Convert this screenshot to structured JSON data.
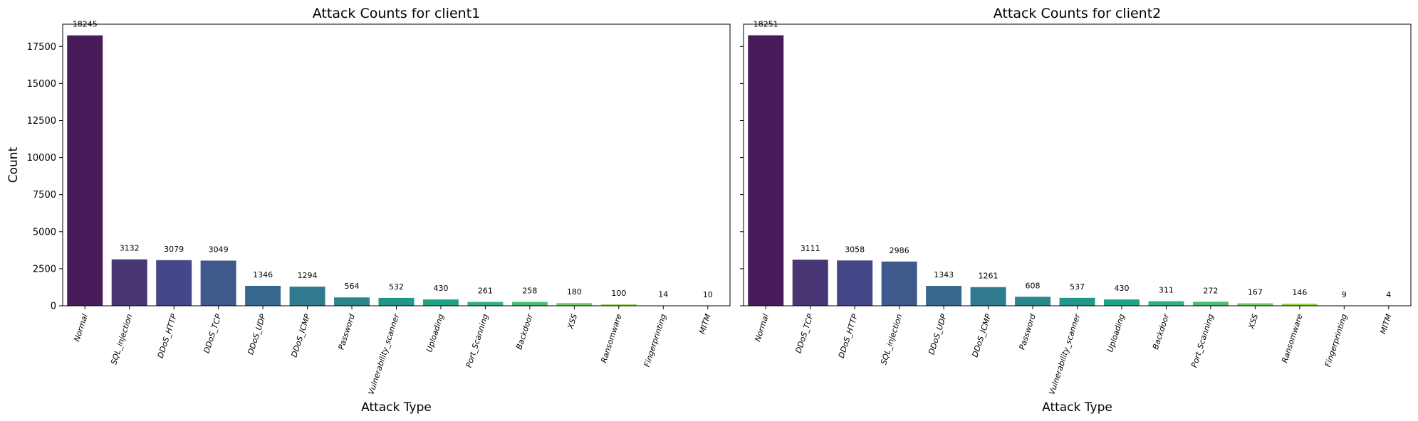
{
  "chart_data": [
    {
      "type": "bar",
      "title": "Attack Counts for client1",
      "xlabel": "Attack Type",
      "ylabel": "Count",
      "ylim": [
        0,
        19000
      ],
      "yticks": [
        0,
        2500,
        5000,
        7500,
        10000,
        12500,
        15000,
        17500
      ],
      "categories": [
        "Normal",
        "SQL_injection",
        "DDoS_HTTP",
        "DDoS_TCP",
        "DDoS_UDP",
        "DDoS_ICMP",
        "Password",
        "Vulnerability_scanner",
        "Uploading",
        "Port_Scanning",
        "Backdoor",
        "XSS",
        "Ransomware",
        "Fingerprinting",
        "MITM"
      ],
      "values": [
        18245,
        3132,
        3079,
        3049,
        1346,
        1294,
        564,
        532,
        430,
        261,
        258,
        180,
        100,
        14,
        10
      ],
      "grid": false,
      "palette": "viridis"
    },
    {
      "type": "bar",
      "title": "Attack Counts for client2",
      "xlabel": "Attack Type",
      "ylabel": "",
      "ylim": [
        0,
        19000
      ],
      "yticks": [
        0,
        2500,
        5000,
        7500,
        10000,
        12500,
        15000,
        17500
      ],
      "categories": [
        "Normal",
        "DDoS_TCP",
        "DDoS_HTTP",
        "SQL_injection",
        "DDoS_UDP",
        "DDoS_ICMP",
        "Password",
        "Vulnerability_scanner",
        "Uploading",
        "Backdoor",
        "Port_Scanning",
        "XSS",
        "Ransomware",
        "Fingerprinting",
        "MITM"
      ],
      "values": [
        18251,
        3111,
        3058,
        2986,
        1343,
        1261,
        608,
        537,
        430,
        311,
        272,
        167,
        146,
        9,
        4
      ],
      "grid": false,
      "palette": "viridis"
    }
  ],
  "colors": [
    "#481b5a",
    "#483675",
    "#454888",
    "#3e5a8c",
    "#37698e",
    "#2f7a8e",
    "#2a878e",
    "#22968b",
    "#20a485",
    "#2fb37c",
    "#47bf6e",
    "#6dcd58",
    "#94d740",
    "#c2df22",
    "#eae51a"
  ]
}
